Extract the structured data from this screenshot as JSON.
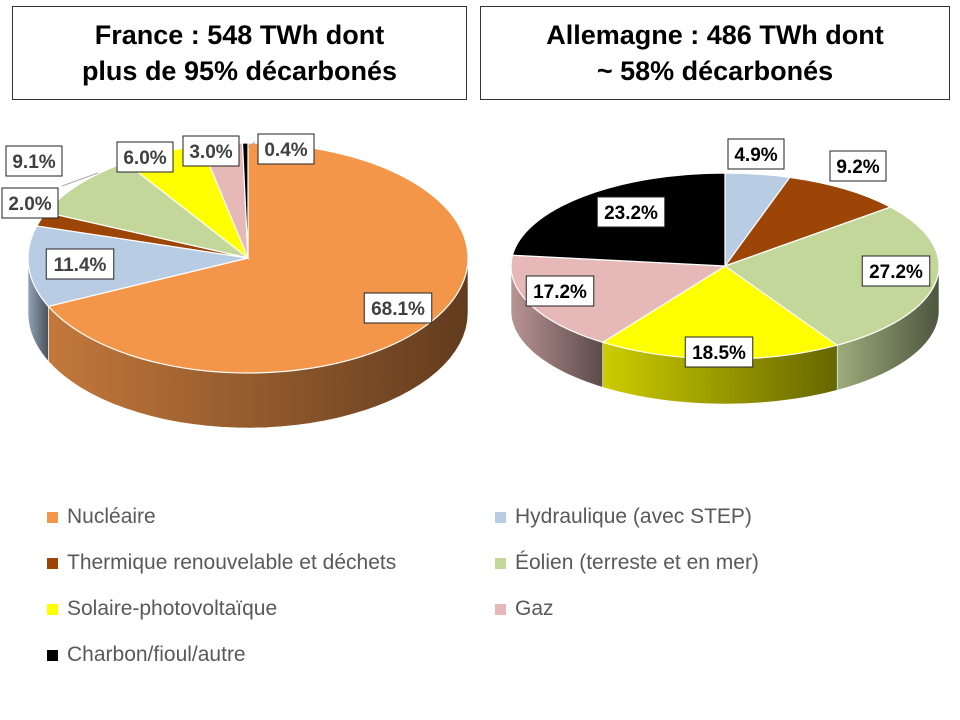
{
  "legend": [
    {
      "label": "Nucléaire",
      "color": "#F4964A"
    },
    {
      "label": "Hydraulique (avec STEP)",
      "color": "#B8CCE4"
    },
    {
      "label": "Thermique renouvelable et déchets",
      "color": "#9C4506"
    },
    {
      "label": "Éolien (terreste et en mer)",
      "color": "#C4D79B"
    },
    {
      "label": "Solaire-photovoltaïque",
      "color": "#FFFF00"
    },
    {
      "label": "Gaz",
      "color": "#E6B9B8"
    },
    {
      "label": "Charbon/fioul/autre",
      "color": "#000000"
    }
  ],
  "chart_data": [
    {
      "type": "pie",
      "title_line1": "France : 548 TWh dont",
      "title_line2": "plus de 95% décarbonés",
      "categories": [
        "Nucléaire",
        "Hydraulique (avec STEP)",
        "Thermique renouvelable et déchets",
        "Éolien (terreste et en mer)",
        "Solaire-photovoltaïque",
        "Gaz",
        "Charbon/fioul/autre"
      ],
      "values": [
        68.1,
        11.4,
        2.0,
        9.1,
        6.0,
        3.0,
        0.4
      ],
      "labels": [
        "68.1%",
        "11.4%",
        "2.0%",
        "9.1%",
        "6.0%",
        "3.0%",
        "0.4%"
      ]
    },
    {
      "type": "pie",
      "title_line1": "Allemagne : 486 TWh dont",
      "title_line2": "~ 58% décarbonés",
      "categories": [
        "Hydraulique (avec STEP)",
        "Thermique renouvelable et déchets",
        "Éolien (terreste et en mer)",
        "Solaire-photovoltaïque",
        "Gaz",
        "Charbon/fioul/autre"
      ],
      "values": [
        4.9,
        9.2,
        27.2,
        18.5,
        17.2,
        23.2
      ],
      "labels": [
        "4.9%",
        "9.2%",
        "27.2%",
        "18.5%",
        "17.2%",
        "23.2%"
      ]
    }
  ]
}
